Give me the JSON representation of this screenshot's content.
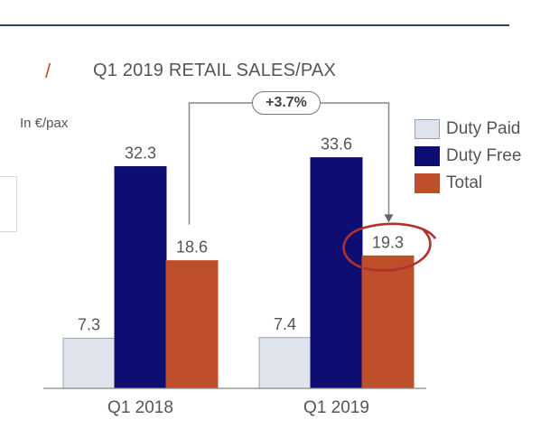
{
  "header": {
    "slash": "/",
    "title": "Q1 2019 RETAIL SALES/PAX"
  },
  "unit_label": "In €/pax",
  "growth_badge": "+3.7%",
  "colors": {
    "duty_paid": "#dfe3ec",
    "duty_free": "#0d0d72",
    "total": "#bf4f2b",
    "annotation": "#b2312c"
  },
  "legend": [
    {
      "label": "Duty Paid",
      "color": "#dfe3ec"
    },
    {
      "label": "Duty Free",
      "color": "#0d0d72"
    },
    {
      "label": "Total",
      "color": "#bf4f2b"
    }
  ],
  "chart_data": {
    "type": "bar",
    "categories": [
      "Q1 2018",
      "Q1 2019"
    ],
    "series": [
      {
        "name": "Duty Paid",
        "values": [
          7.3,
          7.4
        ]
      },
      {
        "name": "Duty Free",
        "values": [
          32.3,
          33.6
        ]
      },
      {
        "name": "Total",
        "values": [
          18.6,
          19.3
        ]
      }
    ],
    "ylabel": "In €/pax",
    "ylim": [
      0,
      33.6
    ],
    "legend_position": "right",
    "grid": false
  }
}
